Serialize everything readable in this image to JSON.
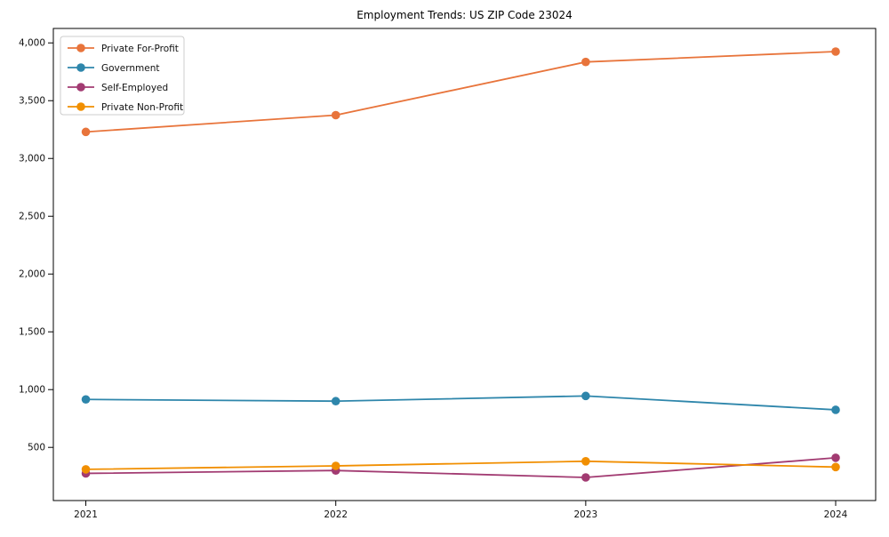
{
  "chart_data": {
    "type": "line",
    "title": "Employment Trends: US ZIP Code 23024",
    "xlabel": "",
    "ylabel": "",
    "x": [
      2021,
      2022,
      2023,
      2024
    ],
    "xtick_labels": [
      "2021",
      "2022",
      "2023",
      "2024"
    ],
    "yticks": [
      500,
      1000,
      1500,
      2000,
      2500,
      3000,
      3500,
      4000
    ],
    "ytick_labels": [
      "500",
      "1,000",
      "1,500",
      "2,000",
      "2,500",
      "3,000",
      "3,500",
      "4,000"
    ],
    "series": [
      {
        "name": "Private For-Profit",
        "color": "#E8743B",
        "values": [
          3230,
          3375,
          3835,
          3925
        ]
      },
      {
        "name": "Government",
        "color": "#2E86AB",
        "values": [
          915,
          900,
          945,
          825
        ]
      },
      {
        "name": "Self-Employed",
        "color": "#A23B72",
        "values": [
          275,
          300,
          240,
          410
        ]
      },
      {
        "name": "Private Non-Profit",
        "color": "#F18F01",
        "values": [
          310,
          340,
          380,
          330
        ]
      }
    ],
    "xlim": [
      2020.87,
      2024.16
    ],
    "ylim": [
      40,
      4125
    ],
    "grid": false,
    "legend_position": "upper left",
    "marker": "circle",
    "axis_color": "#000000",
    "text_color": "#111111",
    "background": "#ffffff"
  }
}
